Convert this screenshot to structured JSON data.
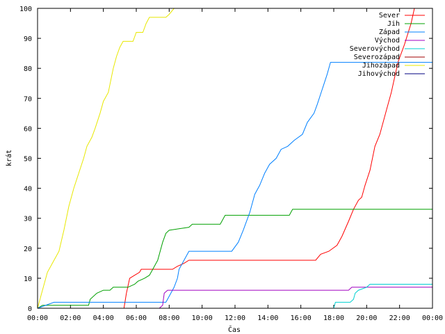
{
  "chart_data": {
    "type": "line",
    "title": "",
    "xlabel": "Čas",
    "ylabel": "krát",
    "xlim": [
      0,
      24
    ],
    "ylim": [
      0,
      100
    ],
    "x_tick_values": [
      0,
      2,
      4,
      6,
      8,
      10,
      12,
      14,
      16,
      18,
      20,
      22,
      24
    ],
    "x_tick_labels": [
      "00:00",
      "02:00",
      "04:00",
      "06:00",
      "08:00",
      "10:00",
      "12:00",
      "14:00",
      "16:00",
      "18:00",
      "20:00",
      "22:00",
      "00:00"
    ],
    "y_tick_values": [
      0,
      10,
      20,
      30,
      40,
      50,
      60,
      70,
      80,
      90,
      100
    ],
    "y_tick_labels": [
      "0",
      "10",
      "20",
      "30",
      "40",
      "50",
      "60",
      "70",
      "80",
      "90",
      "100"
    ],
    "grid": false,
    "legend": "top-right",
    "series": [
      {
        "name": "Sever",
        "color": "#ff0000",
        "points": [
          [
            5.25,
            0
          ],
          [
            5.4,
            5
          ],
          [
            5.6,
            10
          ],
          [
            5.9,
            11
          ],
          [
            6.2,
            12
          ],
          [
            6.3,
            13
          ],
          [
            8.2,
            13
          ],
          [
            8.5,
            14
          ],
          [
            8.9,
            15
          ],
          [
            9.2,
            16
          ],
          [
            16.9,
            16
          ],
          [
            17.2,
            18
          ],
          [
            17.7,
            19
          ],
          [
            18.2,
            21
          ],
          [
            18.5,
            24
          ],
          [
            18.9,
            29
          ],
          [
            19.2,
            33
          ],
          [
            19.5,
            36
          ],
          [
            19.7,
            37
          ],
          [
            19.9,
            41
          ],
          [
            20.2,
            46
          ],
          [
            20.5,
            54
          ],
          [
            20.8,
            58
          ],
          [
            21.2,
            66
          ],
          [
            21.5,
            72
          ],
          [
            21.9,
            82
          ],
          [
            22.3,
            88
          ],
          [
            22.7,
            95
          ],
          [
            22.9,
            100
          ]
        ]
      },
      {
        "name": "Jih",
        "color": "#00a000",
        "points": [
          [
            0,
            0
          ],
          [
            0.3,
            1
          ],
          [
            3.1,
            1
          ],
          [
            3.2,
            3
          ],
          [
            3.6,
            5
          ],
          [
            4.0,
            6
          ],
          [
            4.4,
            6
          ],
          [
            4.6,
            7
          ],
          [
            5.5,
            7
          ],
          [
            5.9,
            8
          ],
          [
            6.1,
            9
          ],
          [
            6.5,
            10
          ],
          [
            6.8,
            11
          ],
          [
            7.0,
            13
          ],
          [
            7.3,
            16
          ],
          [
            7.6,
            22
          ],
          [
            7.8,
            25
          ],
          [
            8.0,
            26
          ],
          [
            9.2,
            27
          ],
          [
            9.4,
            28
          ],
          [
            11.1,
            28
          ],
          [
            11.4,
            31
          ],
          [
            15.3,
            31
          ],
          [
            15.5,
            33
          ],
          [
            24,
            33
          ]
        ]
      },
      {
        "name": "Západ",
        "color": "#0080ff",
        "points": [
          [
            0,
            0
          ],
          [
            1.0,
            2
          ],
          [
            7.8,
            2
          ],
          [
            8.1,
            5
          ],
          [
            8.3,
            7
          ],
          [
            8.5,
            10
          ],
          [
            8.6,
            13
          ],
          [
            8.8,
            15
          ],
          [
            9.0,
            17
          ],
          [
            9.1,
            18
          ],
          [
            9.2,
            19
          ],
          [
            11.8,
            19
          ],
          [
            12.2,
            22
          ],
          [
            12.5,
            26
          ],
          [
            12.9,
            32
          ],
          [
            13.2,
            38
          ],
          [
            13.5,
            41
          ],
          [
            13.8,
            45
          ],
          [
            14.1,
            48
          ],
          [
            14.5,
            50
          ],
          [
            14.8,
            53
          ],
          [
            15.2,
            54
          ],
          [
            15.6,
            56
          ],
          [
            16.1,
            58
          ],
          [
            16.4,
            62
          ],
          [
            16.8,
            65
          ],
          [
            17.0,
            68
          ],
          [
            17.3,
            73
          ],
          [
            17.6,
            78
          ],
          [
            17.8,
            82
          ],
          [
            24,
            82
          ]
        ]
      },
      {
        "name": "Východ",
        "color": "#a000c0",
        "points": [
          [
            7.4,
            0
          ],
          [
            7.6,
            1
          ],
          [
            7.7,
            5
          ],
          [
            7.9,
            6
          ],
          [
            18.9,
            6
          ],
          [
            19.1,
            7
          ],
          [
            24,
            7
          ]
        ]
      },
      {
        "name": "Severovýchod",
        "color": "#00d0d0",
        "points": [
          [
            18.0,
            0
          ],
          [
            18.1,
            2
          ],
          [
            19.0,
            2
          ],
          [
            19.2,
            3
          ],
          [
            19.3,
            5
          ],
          [
            19.5,
            6
          ],
          [
            20.0,
            7
          ],
          [
            20.2,
            8
          ],
          [
            24,
            8
          ]
        ]
      },
      {
        "name": "Severozápad",
        "color": "#a00000",
        "points": []
      },
      {
        "name": "Jihozápad",
        "color": "#e8e800",
        "points": [
          [
            0,
            0
          ],
          [
            0.25,
            5
          ],
          [
            0.6,
            12
          ],
          [
            1.0,
            16
          ],
          [
            1.3,
            19
          ],
          [
            1.6,
            26
          ],
          [
            1.9,
            34
          ],
          [
            2.2,
            40
          ],
          [
            2.5,
            45
          ],
          [
            2.8,
            50
          ],
          [
            3.0,
            54
          ],
          [
            3.3,
            57
          ],
          [
            3.5,
            60
          ],
          [
            3.8,
            65
          ],
          [
            4.0,
            69
          ],
          [
            4.3,
            72
          ],
          [
            4.6,
            80
          ],
          [
            4.8,
            84
          ],
          [
            5.0,
            87
          ],
          [
            5.2,
            89
          ],
          [
            5.8,
            89
          ],
          [
            6.0,
            92
          ],
          [
            6.4,
            92
          ],
          [
            6.6,
            95
          ],
          [
            6.8,
            97
          ],
          [
            7.8,
            97
          ],
          [
            8.0,
            98
          ],
          [
            8.3,
            100
          ]
        ]
      },
      {
        "name": "Jihovýchod",
        "color": "#000080",
        "points": []
      }
    ]
  }
}
